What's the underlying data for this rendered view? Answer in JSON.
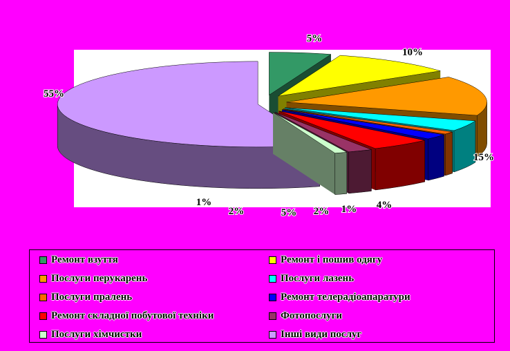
{
  "chart_data": {
    "type": "pie",
    "style": "3d-exploded",
    "series": [
      {
        "label": "Ремонт взуття",
        "value": 5,
        "value_label": "5%",
        "color": "#339966"
      },
      {
        "label": "Ремонт і пошив одягу",
        "value": 10,
        "value_label": "10%",
        "color": "#FFFF00"
      },
      {
        "label": "Послуги перукарень",
        "value": 15,
        "value_label": "15%",
        "color": "#FF9900"
      },
      {
        "label": "Послуги лазень",
        "value": 4,
        "value_label": "4%",
        "color": "#00FFFF"
      },
      {
        "label": "Послуги пралень",
        "value": 1,
        "value_label": "1%",
        "color": "#FF6600"
      },
      {
        "label": "Ремонт телерадіоапаратури",
        "value": 2,
        "value_label": "2%",
        "color": "#0000FF"
      },
      {
        "label": "Ремонт складної побутової техніки",
        "value": 5,
        "value_label": "5%",
        "color": "#FF0000"
      },
      {
        "label": "Фотопослуги",
        "value": 2,
        "value_label": "2%",
        "color": "#993366"
      },
      {
        "label": "Послуги хімчистки",
        "value": 1,
        "value_label": "1%",
        "color": "#CCFFCC"
      },
      {
        "label": "Інші види послуг",
        "value": 55,
        "value_label": "55%",
        "color": "#CC99FF"
      }
    ],
    "legend_position": "bottom",
    "background_color": "#FF00FF",
    "plot_background_color": "#FFFFFF"
  }
}
